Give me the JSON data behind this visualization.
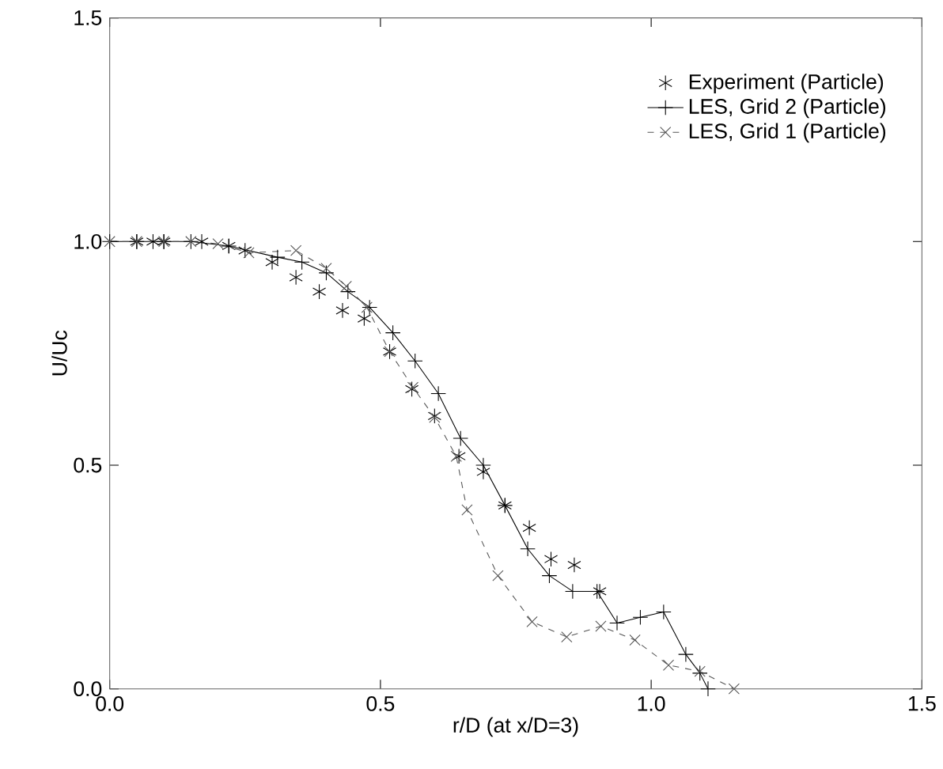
{
  "chart_data": {
    "type": "line",
    "xlabel": "r/D (at x/D=3)",
    "ylabel": "U/Uc",
    "xlim": [
      0,
      1.5
    ],
    "ylim": [
      0,
      1.5
    ],
    "xticks": [
      {
        "value": 0,
        "label": "0.0"
      },
      {
        "value": 0.5,
        "label": "0.5"
      },
      {
        "value": 1,
        "label": "1.0"
      },
      {
        "value": 1.5,
        "label": "1.5"
      }
    ],
    "yticks": [
      {
        "value": 0,
        "label": "0.0"
      },
      {
        "value": 0.5,
        "label": "0.5"
      },
      {
        "value": 1,
        "label": "1.0"
      },
      {
        "value": 1.5,
        "label": "1.5"
      }
    ],
    "grid": false,
    "legend": "top right",
    "series": [
      {
        "name": "Experiment (Particle)",
        "type": "scatter",
        "color": "#000000",
        "x": [
          0.05,
          0.08,
          0.1,
          0.17,
          0.22,
          0.25,
          0.3,
          0.344,
          0.387,
          0.43,
          0.47,
          0.517,
          0.558,
          0.6,
          0.645,
          0.69,
          0.73,
          0.775,
          0.815,
          0.858,
          0.905
        ],
        "values": [
          1.0,
          1.0,
          1.0,
          1.0,
          0.99,
          0.98,
          0.954,
          0.92,
          0.888,
          0.846,
          0.828,
          0.754,
          0.67,
          0.61,
          0.52,
          0.485,
          0.41,
          0.36,
          0.29,
          0.277,
          0.218
        ]
      },
      {
        "name": "LES, Grid 2 (Particle)",
        "marker": "plus",
        "line_style": "solid",
        "color": "#000000",
        "x": [
          0,
          0.05,
          0.1,
          0.15,
          0.22,
          0.31,
          0.355,
          0.4,
          0.44,
          0.48,
          0.523,
          0.564,
          0.607,
          0.648,
          0.69,
          0.73,
          0.772,
          0.812,
          0.855,
          0.9,
          0.937,
          0.98,
          1.023,
          1.064,
          1.09,
          1.105
        ],
        "values": [
          1.0,
          1.0,
          1.0,
          1.0,
          0.99,
          0.965,
          0.954,
          0.93,
          0.888,
          0.853,
          0.796,
          0.733,
          0.66,
          0.56,
          0.5,
          0.41,
          0.313,
          0.253,
          0.218,
          0.218,
          0.147,
          0.16,
          0.172,
          0.077,
          0.035,
          0.0
        ]
      },
      {
        "name": "LES, Grid 1 (Particle)",
        "marker": "cross",
        "line_style": "dashed",
        "color": "#555555",
        "x": [
          0,
          0.05,
          0.1,
          0.15,
          0.2,
          0.257,
          0.344,
          0.4,
          0.437,
          0.475,
          0.517,
          0.56,
          0.6,
          0.64,
          0.66,
          0.717,
          0.78,
          0.844,
          0.907,
          0.97,
          1.032,
          1.09,
          1.153
        ],
        "values": [
          1.0,
          1.0,
          1.0,
          1.0,
          0.995,
          0.975,
          0.98,
          0.94,
          0.9,
          0.853,
          0.754,
          0.674,
          0.607,
          0.52,
          0.4,
          0.253,
          0.15,
          0.116,
          0.14,
          0.109,
          0.053,
          0.039,
          0.0
        ]
      }
    ]
  }
}
